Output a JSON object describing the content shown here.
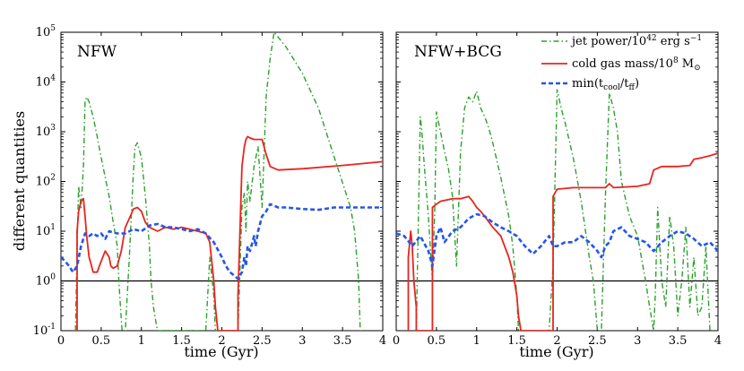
{
  "chart_data": [
    {
      "type": "line",
      "panel": "left",
      "title": "NFW",
      "xlabel": "time (Gyr)",
      "ylabel": "different quantities",
      "xlim": [
        0,
        4
      ],
      "ylim": [
        0.1,
        100000
      ],
      "yscale": "log",
      "xticks": [
        "0",
        "0.5",
        "1",
        "1.5",
        "2",
        "2.5",
        "3",
        "3.5",
        "4"
      ],
      "yticks": [
        {
          "base": "10",
          "exp": "-1"
        },
        {
          "base": "10",
          "exp": "0"
        },
        {
          "base": "10",
          "exp": "1"
        },
        {
          "base": "10",
          "exp": "2"
        },
        {
          "base": "10",
          "exp": "3"
        },
        {
          "base": "10",
          "exp": "4"
        },
        {
          "base": "10",
          "exp": "5"
        }
      ],
      "reference_line": 1,
      "series": [
        {
          "name": "jet power",
          "color": "#2ca02c",
          "style": "dashdot",
          "x": [
            0.18,
            0.2,
            0.22,
            0.25,
            0.28,
            0.3,
            0.32,
            0.35,
            0.4,
            0.45,
            0.5,
            0.55,
            0.6,
            0.65,
            0.7,
            0.72,
            0.74,
            0.76,
            0.8,
            0.85,
            0.9,
            0.92,
            0.95,
            1.0,
            1.05,
            1.1,
            1.12,
            1.15,
            1.18,
            1.2,
            1.25,
            1.8,
            1.85,
            1.88,
            1.9,
            1.92,
            2.2,
            2.25,
            2.28,
            2.3,
            2.32,
            2.35,
            2.4,
            2.45,
            2.5,
            2.55,
            2.6,
            2.65,
            2.7,
            2.8,
            3.0,
            3.2,
            3.4,
            3.6,
            3.65,
            3.7,
            3.72
          ],
          "y": [
            0.1,
            5,
            80,
            30,
            200,
            4000,
            5000,
            4000,
            2000,
            800,
            300,
            120,
            50,
            15,
            5,
            1,
            0.3,
            0.1,
            0.1,
            3,
            150,
            500,
            600,
            300,
            50,
            5,
            1,
            0.3,
            0.15,
            0.1,
            0.1,
            0.1,
            3,
            1,
            0.5,
            0.1,
            0.1,
            30,
            60,
            10,
            100,
            40,
            200,
            500,
            30,
            5000,
            30000,
            100000,
            80000,
            50000,
            15000,
            3000,
            300,
            30,
            10,
            1,
            0.1
          ]
        },
        {
          "name": "cold gas mass",
          "color": "#e8241e",
          "style": "solid",
          "x": [
            0.2,
            0.2,
            0.22,
            0.25,
            0.28,
            0.3,
            0.32,
            0.35,
            0.38,
            0.4,
            0.45,
            0.5,
            0.55,
            0.6,
            0.62,
            0.65,
            0.7,
            0.75,
            0.8,
            0.85,
            0.9,
            0.95,
            1.0,
            1.05,
            1.1,
            1.2,
            1.3,
            1.4,
            1.5,
            1.6,
            1.7,
            1.8,
            1.85,
            1.9,
            1.92,
            1.95,
            1.97,
            2.2,
            2.2,
            2.25,
            2.28,
            2.3,
            2.32,
            2.35,
            2.4,
            2.5,
            2.55,
            2.6,
            2.7,
            3.0,
            3.5,
            4.0
          ],
          "y": [
            0.1,
            10,
            25,
            40,
            45,
            20,
            8,
            3,
            2,
            1.5,
            1.5,
            2.5,
            4,
            3,
            2,
            1.8,
            2,
            4,
            12,
            18,
            28,
            30,
            25,
            15,
            12,
            10,
            12,
            11,
            12,
            11,
            10,
            9,
            6,
            1,
            0.3,
            0.1,
            0.1,
            0.1,
            0.5,
            200,
            500,
            700,
            800,
            750,
            700,
            700,
            350,
            200,
            170,
            180,
            210,
            250
          ]
        },
        {
          "name": "min(tcool/tff)",
          "color": "#2456e8",
          "style": "dashed",
          "x": [
            0.0,
            0.05,
            0.1,
            0.15,
            0.2,
            0.25,
            0.3,
            0.35,
            0.4,
            0.45,
            0.5,
            0.55,
            0.6,
            0.7,
            0.8,
            0.9,
            1.0,
            1.1,
            1.2,
            1.3,
            1.4,
            1.5,
            1.6,
            1.7,
            1.8,
            1.9,
            2.0,
            2.05,
            2.1,
            2.15,
            2.2,
            2.25,
            2.28,
            2.3,
            2.32,
            2.35,
            2.38,
            2.4,
            2.42,
            2.45,
            2.5,
            2.55,
            2.6,
            2.7,
            2.8,
            3.0,
            3.2,
            3.4,
            3.6,
            3.8,
            4.0
          ],
          "y": [
            3,
            2.5,
            2,
            1.5,
            2,
            5,
            9,
            8,
            9,
            8,
            9,
            7,
            10,
            9,
            9,
            11,
            10,
            13,
            14,
            12,
            12,
            11,
            10,
            11,
            9,
            6,
            3,
            2,
            1.5,
            1.3,
            1.1,
            1.5,
            3,
            2,
            5,
            4,
            6,
            8,
            5,
            10,
            20,
            25,
            35,
            30,
            30,
            28,
            27,
            30,
            30,
            30,
            30
          ]
        }
      ]
    },
    {
      "type": "line",
      "panel": "right",
      "title": "NFW+BCG",
      "xlabel": "time (Gyr)",
      "xlim": [
        0,
        4
      ],
      "ylim": [
        0.1,
        100000
      ],
      "yscale": "log",
      "xticks": [
        "0",
        "0.5",
        "1",
        "1.5",
        "2",
        "2.5",
        "3",
        "3.5",
        "4"
      ],
      "reference_line": 1,
      "legend": {
        "position": "top-right",
        "entries": [
          {
            "text": "jet power/10",
            "sup": "42",
            "tail": " erg s",
            "tail_sup": "−1",
            "color": "#2ca02c",
            "style": "dashdot"
          },
          {
            "text": "cold gas mass/10",
            "sup": "8",
            "tail": " M",
            "tail_sub": "⊙",
            "color": "#e8241e",
            "style": "solid"
          },
          {
            "text": "min(t",
            "sub": "cool",
            "mid": "/t",
            "mid_sub": "ff",
            "tail": ")",
            "color": "#2456e8",
            "style": "dashed"
          }
        ]
      },
      "series": [
        {
          "name": "jet power",
          "color": "#2ca02c",
          "style": "dashdot",
          "x": [
            0.25,
            0.3,
            0.32,
            0.35,
            0.38,
            0.4,
            0.45,
            0.48,
            0.5,
            0.55,
            0.6,
            0.65,
            0.7,
            0.75,
            0.8,
            0.85,
            0.9,
            0.95,
            1.0,
            1.05,
            1.1,
            1.15,
            1.2,
            1.3,
            1.4,
            1.45,
            1.5,
            1.52,
            1.55,
            1.6,
            1.9,
            1.95,
            2.0,
            2.05,
            2.1,
            2.2,
            2.3,
            2.4,
            2.45,
            2.5,
            2.55,
            2.6,
            2.65,
            2.7,
            2.75,
            2.8,
            2.9,
            3.0,
            3.1,
            3.15,
            3.2,
            3.22,
            3.25,
            3.3,
            3.35,
            3.4,
            3.45,
            3.5,
            3.55,
            3.6,
            3.65,
            3.7,
            3.75,
            3.8,
            3.85,
            3.9,
            3.95
          ],
          "y": [
            0.1,
            2000,
            1000,
            200,
            50,
            20,
            1,
            30,
            2500,
            1000,
            400,
            180,
            50,
            2,
            400,
            3000,
            5000,
            4000,
            6500,
            3000,
            2000,
            1200,
            600,
            120,
            20,
            5,
            0.5,
            0.1,
            0.1,
            0.1,
            0.1,
            2,
            7000,
            3000,
            1500,
            300,
            40,
            3,
            1,
            0.1,
            0.1,
            50,
            6000,
            3000,
            1000,
            100,
            20,
            8,
            1,
            0.3,
            0.1,
            0.5,
            30,
            1,
            0.3,
            20,
            5,
            0.2,
            1,
            12,
            0.3,
            3,
            0.2,
            0.3,
            5,
            0.1,
            0.1
          ]
        },
        {
          "name": "cold gas mass",
          "color": "#e8241e",
          "style": "solid",
          "x": [
            0.15,
            0.15,
            0.18,
            0.2,
            0.22,
            0.25,
            0.25,
            0.45,
            0.45,
            0.5,
            0.55,
            0.7,
            0.8,
            0.9,
            0.95,
            1.0,
            1.05,
            1.1,
            1.2,
            1.3,
            1.4,
            1.45,
            1.5,
            1.52,
            1.55,
            1.95,
            1.95,
            2.0,
            2.2,
            2.4,
            2.6,
            2.65,
            2.7,
            3.0,
            3.15,
            3.2,
            3.3,
            3.5,
            3.65,
            3.7,
            3.8,
            3.9,
            4.0
          ],
          "y": [
            0.1,
            3,
            10,
            5,
            1,
            0.3,
            0.1,
            0.1,
            30,
            35,
            40,
            45,
            45,
            50,
            40,
            30,
            25,
            20,
            12,
            8,
            3,
            1.5,
            0.5,
            0.2,
            0.1,
            0.1,
            50,
            70,
            75,
            75,
            75,
            90,
            75,
            80,
            90,
            170,
            200,
            200,
            210,
            280,
            300,
            330,
            370
          ]
        },
        {
          "name": "min(tcool/tff)",
          "color": "#2456e8",
          "style": "dashed",
          "x": [
            0.0,
            0.1,
            0.2,
            0.3,
            0.4,
            0.45,
            0.5,
            0.55,
            0.6,
            0.7,
            0.8,
            0.9,
            1.0,
            1.1,
            1.2,
            1.3,
            1.4,
            1.5,
            1.6,
            1.7,
            1.8,
            1.9,
            1.95,
            2.0,
            2.1,
            2.2,
            2.3,
            2.4,
            2.5,
            2.55,
            2.6,
            2.65,
            2.7,
            2.8,
            2.9,
            3.0,
            3.1,
            3.2,
            3.3,
            3.4,
            3.5,
            3.6,
            3.7,
            3.8,
            3.9,
            4.0
          ],
          "y": [
            9,
            8,
            5,
            8,
            4,
            2,
            8,
            12,
            6,
            10,
            12,
            18,
            22,
            20,
            15,
            12,
            10,
            8,
            5,
            3.5,
            5,
            8,
            5,
            5,
            6,
            6,
            8,
            6,
            4,
            3,
            5,
            6,
            10,
            12,
            8,
            7,
            6,
            4,
            6,
            8,
            10,
            9,
            7,
            5,
            6,
            4
          ]
        }
      ]
    }
  ]
}
